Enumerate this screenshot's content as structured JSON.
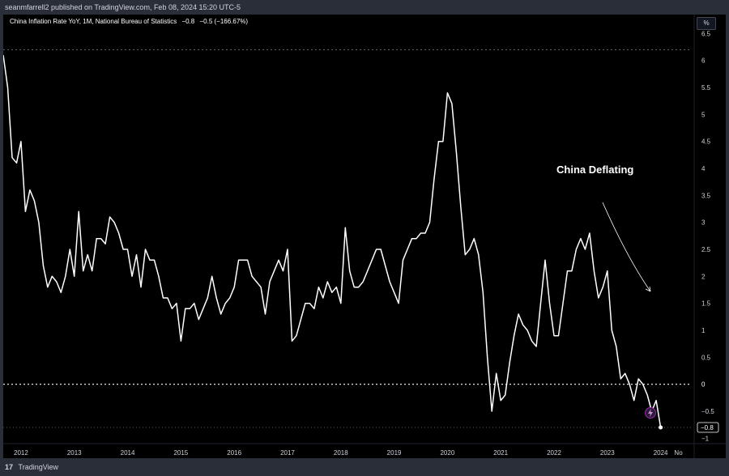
{
  "header": {
    "published_text": "seanmfarrell2 published on TradingView.com, Feb 08, 2024 15:20 UTC-5"
  },
  "legend": {
    "title": "China Inflation Rate YoY, 1M, National Bureau of Statistics",
    "last_value": "−0.8",
    "change": "−0.5 (−166.67%)"
  },
  "unit_badge": "%",
  "annotation": {
    "text": "China Deflating"
  },
  "footer": {
    "logo": "17",
    "brand": "TradingView",
    "lightning_icon": "lightning-icon"
  },
  "colors": {
    "background": "#000000",
    "frame": "#2a2e39",
    "line": "#ffffff",
    "text": "#d1d4dc",
    "accent": "#9c27b0"
  },
  "chart_data": {
    "type": "line",
    "title": "China Inflation Rate YoY, 1M, National Bureau of Statistics",
    "xlabel": "",
    "ylabel": "",
    "x_ticks": [
      "2012",
      "2013",
      "2014",
      "2015",
      "2016",
      "2017",
      "2018",
      "2019",
      "2020",
      "2021",
      "2022",
      "2023",
      "2024",
      "No"
    ],
    "y_ticks": [
      "6.5",
      "6",
      "5.5",
      "5",
      "4.5",
      "4",
      "3.5",
      "3",
      "2.5",
      "2",
      "1.5",
      "1",
      "0.5",
      "0",
      "−0.5",
      "−1"
    ],
    "ylim": [
      -1.1,
      6.85
    ],
    "xlim": [
      "2011-09",
      "2024-08"
    ],
    "grid": false,
    "reference_lines": [
      {
        "value": 0,
        "label": "0",
        "style": "dotted"
      },
      {
        "value": 6.2,
        "style": "dotted"
      }
    ],
    "last_value_label": "−0.8",
    "series": [
      {
        "values": [
          [
            "2011-09",
            6.1
          ],
          [
            "2011-10",
            5.5
          ],
          [
            "2011-11",
            4.2
          ],
          [
            "2011-12",
            4.1
          ],
          [
            "2012-01",
            4.5
          ],
          [
            "2012-02",
            3.2
          ],
          [
            "2012-03",
            3.6
          ],
          [
            "2012-04",
            3.4
          ],
          [
            "2012-05",
            3.0
          ],
          [
            "2012-06",
            2.2
          ],
          [
            "2012-07",
            1.8
          ],
          [
            "2012-08",
            2.0
          ],
          [
            "2012-09",
            1.9
          ],
          [
            "2012-10",
            1.7
          ],
          [
            "2012-11",
            2.0
          ],
          [
            "2012-12",
            2.5
          ],
          [
            "2013-01",
            2.0
          ],
          [
            "2013-02",
            3.2
          ],
          [
            "2013-03",
            2.1
          ],
          [
            "2013-04",
            2.4
          ],
          [
            "2013-05",
            2.1
          ],
          [
            "2013-06",
            2.7
          ],
          [
            "2013-07",
            2.7
          ],
          [
            "2013-08",
            2.6
          ],
          [
            "2013-09",
            3.1
          ],
          [
            "2013-10",
            3.0
          ],
          [
            "2013-11",
            2.8
          ],
          [
            "2013-12",
            2.5
          ],
          [
            "2014-01",
            2.5
          ],
          [
            "2014-02",
            2.0
          ],
          [
            "2014-03",
            2.4
          ],
          [
            "2014-04",
            1.8
          ],
          [
            "2014-05",
            2.5
          ],
          [
            "2014-06",
            2.3
          ],
          [
            "2014-07",
            2.3
          ],
          [
            "2014-08",
            2.0
          ],
          [
            "2014-09",
            1.6
          ],
          [
            "2014-10",
            1.6
          ],
          [
            "2014-11",
            1.4
          ],
          [
            "2014-12",
            1.5
          ],
          [
            "2015-01",
            0.8
          ],
          [
            "2015-02",
            1.4
          ],
          [
            "2015-03",
            1.4
          ],
          [
            "2015-04",
            1.5
          ],
          [
            "2015-05",
            1.2
          ],
          [
            "2015-06",
            1.4
          ],
          [
            "2015-07",
            1.6
          ],
          [
            "2015-08",
            2.0
          ],
          [
            "2015-09",
            1.6
          ],
          [
            "2015-10",
            1.3
          ],
          [
            "2015-11",
            1.5
          ],
          [
            "2015-12",
            1.6
          ],
          [
            "2016-01",
            1.8
          ],
          [
            "2016-02",
            2.3
          ],
          [
            "2016-03",
            2.3
          ],
          [
            "2016-04",
            2.3
          ],
          [
            "2016-05",
            2.0
          ],
          [
            "2016-06",
            1.9
          ],
          [
            "2016-07",
            1.8
          ],
          [
            "2016-08",
            1.3
          ],
          [
            "2016-09",
            1.9
          ],
          [
            "2016-10",
            2.1
          ],
          [
            "2016-11",
            2.3
          ],
          [
            "2016-12",
            2.1
          ],
          [
            "2017-01",
            2.5
          ],
          [
            "2017-02",
            0.8
          ],
          [
            "2017-03",
            0.9
          ],
          [
            "2017-04",
            1.2
          ],
          [
            "2017-05",
            1.5
          ],
          [
            "2017-06",
            1.5
          ],
          [
            "2017-07",
            1.4
          ],
          [
            "2017-08",
            1.8
          ],
          [
            "2017-09",
            1.6
          ],
          [
            "2017-10",
            1.9
          ],
          [
            "2017-11",
            1.7
          ],
          [
            "2017-12",
            1.8
          ],
          [
            "2018-01",
            1.5
          ],
          [
            "2018-02",
            2.9
          ],
          [
            "2018-03",
            2.1
          ],
          [
            "2018-04",
            1.8
          ],
          [
            "2018-05",
            1.8
          ],
          [
            "2018-06",
            1.9
          ],
          [
            "2018-07",
            2.1
          ],
          [
            "2018-08",
            2.3
          ],
          [
            "2018-09",
            2.5
          ],
          [
            "2018-10",
            2.5
          ],
          [
            "2018-11",
            2.2
          ],
          [
            "2018-12",
            1.9
          ],
          [
            "2019-01",
            1.7
          ],
          [
            "2019-02",
            1.5
          ],
          [
            "2019-03",
            2.3
          ],
          [
            "2019-04",
            2.5
          ],
          [
            "2019-05",
            2.7
          ],
          [
            "2019-06",
            2.7
          ],
          [
            "2019-07",
            2.8
          ],
          [
            "2019-08",
            2.8
          ],
          [
            "2019-09",
            3.0
          ],
          [
            "2019-10",
            3.8
          ],
          [
            "2019-11",
            4.5
          ],
          [
            "2019-12",
            4.5
          ],
          [
            "2020-01",
            5.4
          ],
          [
            "2020-02",
            5.2
          ],
          [
            "2020-03",
            4.3
          ],
          [
            "2020-04",
            3.3
          ],
          [
            "2020-05",
            2.4
          ],
          [
            "2020-06",
            2.5
          ],
          [
            "2020-07",
            2.7
          ],
          [
            "2020-08",
            2.4
          ],
          [
            "2020-09",
            1.7
          ],
          [
            "2020-10",
            0.5
          ],
          [
            "2020-11",
            -0.5
          ],
          [
            "2020-12",
            0.2
          ],
          [
            "2021-01",
            -0.3
          ],
          [
            "2021-02",
            -0.2
          ],
          [
            "2021-03",
            0.4
          ],
          [
            "2021-04",
            0.9
          ],
          [
            "2021-05",
            1.3
          ],
          [
            "2021-06",
            1.1
          ],
          [
            "2021-07",
            1.0
          ],
          [
            "2021-08",
            0.8
          ],
          [
            "2021-09",
            0.7
          ],
          [
            "2021-10",
            1.5
          ],
          [
            "2021-11",
            2.3
          ],
          [
            "2021-12",
            1.5
          ],
          [
            "2022-01",
            0.9
          ],
          [
            "2022-02",
            0.9
          ],
          [
            "2022-03",
            1.5
          ],
          [
            "2022-04",
            2.1
          ],
          [
            "2022-05",
            2.1
          ],
          [
            "2022-06",
            2.5
          ],
          [
            "2022-07",
            2.7
          ],
          [
            "2022-08",
            2.5
          ],
          [
            "2022-09",
            2.8
          ],
          [
            "2022-10",
            2.1
          ],
          [
            "2022-11",
            1.6
          ],
          [
            "2022-12",
            1.8
          ],
          [
            "2023-01",
            2.1
          ],
          [
            "2023-02",
            1.0
          ],
          [
            "2023-03",
            0.7
          ],
          [
            "2023-04",
            0.1
          ],
          [
            "2023-05",
            0.2
          ],
          [
            "2023-06",
            0.0
          ],
          [
            "2023-07",
            -0.3
          ],
          [
            "2023-08",
            0.1
          ],
          [
            "2023-09",
            0.0
          ],
          [
            "2023-10",
            -0.2
          ],
          [
            "2023-11",
            -0.5
          ],
          [
            "2023-12",
            -0.3
          ],
          [
            "2024-01",
            -0.8
          ]
        ]
      }
    ]
  }
}
